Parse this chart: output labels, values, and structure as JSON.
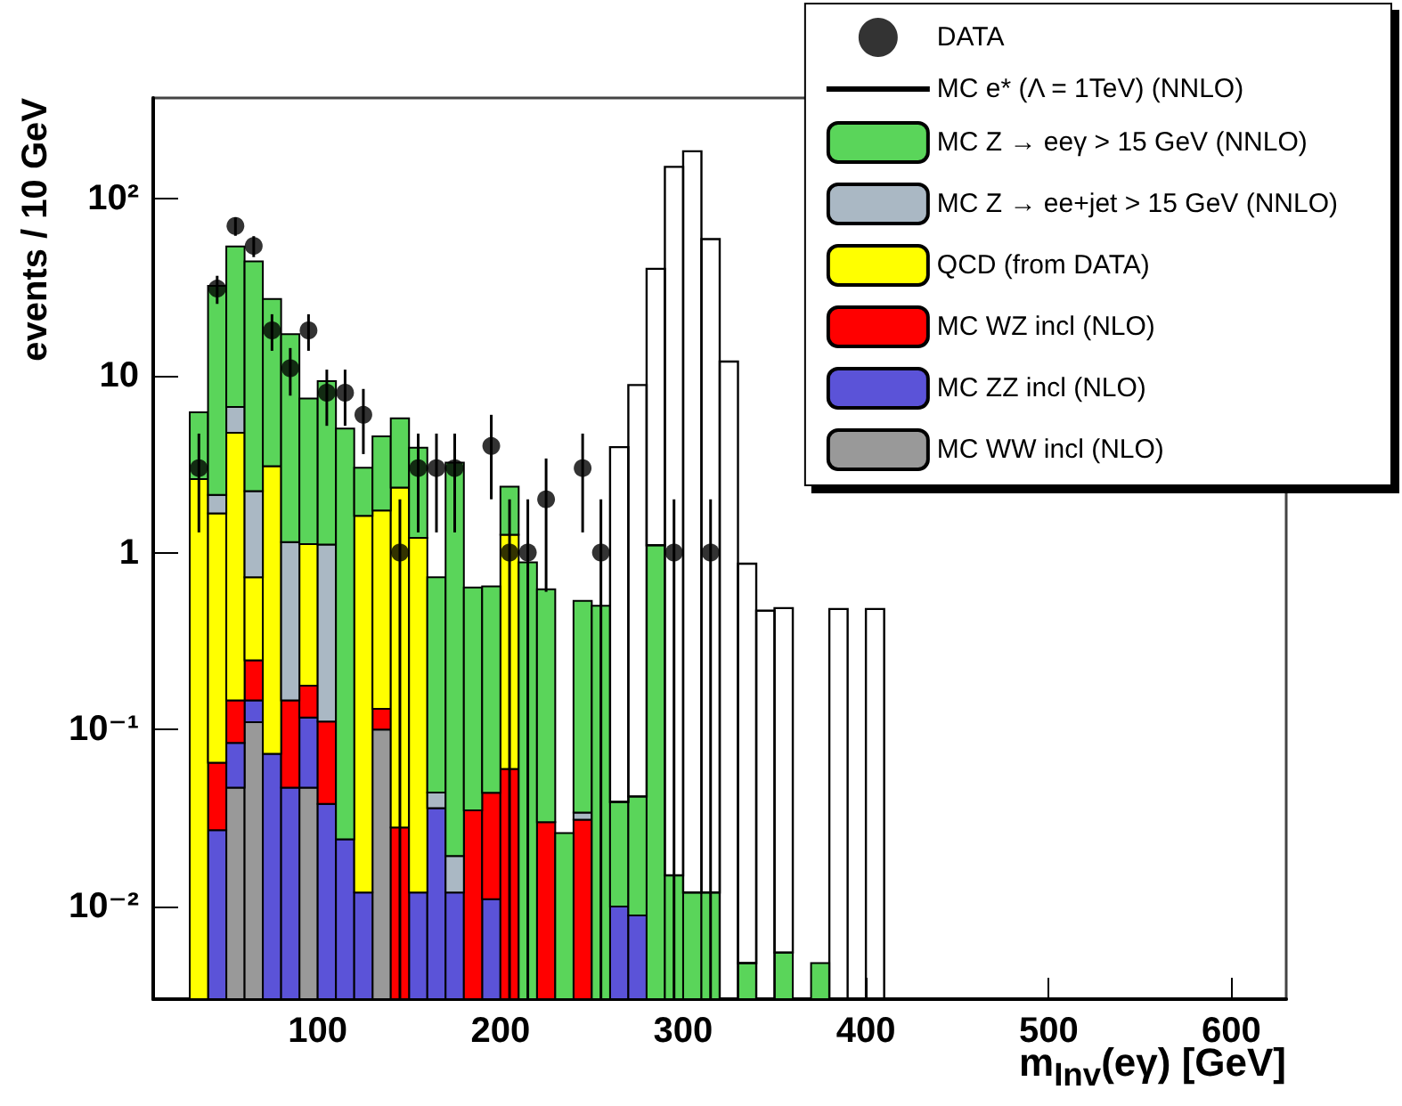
{
  "chart_data": {
    "type": "bar",
    "stacked": true,
    "log": true,
    "legend": "top right",
    "marker": "circle",
    "xlabel": "m$_{Inv}$(eγ) [GeV]",
    "ylabel": "events / 10 GeV",
    "xlim": [
      10,
      630
    ],
    "xticks": [
      100,
      200,
      300,
      400,
      500,
      600
    ],
    "ylim": [
      0.003,
      370
    ],
    "yticks": [
      {
        "value": 0.01,
        "label": "10⁻²"
      },
      {
        "value": 0.1,
        "label": "10⁻¹"
      },
      1,
      10,
      {
        "value": 100,
        "label": "10²"
      }
    ],
    "x": [
      35,
      45,
      55,
      65,
      75,
      85,
      95,
      105,
      115,
      125,
      135,
      145,
      155,
      165,
      175,
      185,
      195,
      205,
      215,
      225,
      235,
      245,
      255,
      265,
      275,
      285,
      295,
      305,
      315,
      325,
      335,
      345,
      355,
      365,
      375,
      385,
      395,
      405
    ],
    "series": [
      {
        "name": "DATA",
        "type": "scatter",
        "color": "#000000",
        "x": [
          35,
          45,
          55,
          65,
          75,
          85,
          95,
          105,
          115,
          125,
          145,
          155,
          165,
          175,
          195,
          205,
          215,
          225,
          245,
          255,
          295,
          315
        ],
        "values": [
          3,
          31,
          70,
          54,
          18,
          11,
          18,
          8,
          8,
          6,
          1,
          3,
          3,
          3,
          4,
          1,
          1,
          2,
          3,
          1,
          1,
          1
        ],
        "errors": [
          1.7,
          5.6,
          8.4,
          7.3,
          4.2,
          3.3,
          4.2,
          2.8,
          2.8,
          2.4,
          [
            0.003,
            2
          ],
          1.7,
          1.7,
          1.7,
          2,
          [
            0.003,
            2
          ],
          [
            0.003,
            2
          ],
          1.4,
          1.7,
          [
            0.003,
            2
          ],
          [
            0.003,
            2
          ],
          [
            0.003,
            2
          ]
        ]
      },
      {
        "name": "MC WW incl (NLO)",
        "color": "#999999",
        "values": [
          null,
          null,
          0.047,
          0.11,
          null,
          null,
          0.047,
          null,
          null,
          null,
          0.1,
          null,
          null,
          null,
          null,
          null,
          null,
          null,
          null,
          null,
          null,
          null,
          null,
          null,
          null,
          null,
          null,
          null,
          null,
          null,
          null,
          null,
          null,
          null,
          null,
          null,
          null,
          null
        ]
      },
      {
        "name": "MC ZZ incl (NLO)",
        "color": "#5b53d8",
        "values": [
          null,
          0.027,
          0.037,
          0.036,
          0.073,
          0.047,
          0.07,
          0.038,
          0.024,
          0.012,
          null,
          null,
          0.012,
          0.036,
          0.012,
          null,
          0.011,
          null,
          null,
          null,
          null,
          null,
          null,
          0.01,
          0.0089,
          null,
          null,
          null,
          null,
          null,
          null,
          null,
          null,
          null,
          null,
          null,
          null,
          null
        ]
      },
      {
        "name": "MC WZ incl (NLO)",
        "color": "#ff0000",
        "values": [
          null,
          0.038,
          0.062,
          0.1,
          null,
          0.099,
          0.06,
          0.073,
          null,
          null,
          0.031,
          0.028,
          null,
          null,
          null,
          0.035,
          0.033,
          0.06,
          null,
          0.03,
          null,
          0.031,
          null,
          null,
          null,
          null,
          null,
          null,
          null,
          null,
          null,
          null,
          null,
          null,
          null,
          null,
          null,
          null
        ]
      },
      {
        "name": "QCD (from DATA)",
        "color": "#ffff00",
        "values": [
          2.6,
          1.6,
          4.6,
          0.48,
          3.0,
          null,
          0.94,
          null,
          null,
          1.6,
          1.6,
          2.3,
          1.2,
          null,
          null,
          null,
          null,
          1.2,
          null,
          null,
          null,
          null,
          null,
          null,
          null,
          null,
          null,
          null,
          null,
          null,
          null,
          null,
          null,
          null,
          null,
          null,
          null,
          null
        ]
      },
      {
        "name": "MC Z → ee+jet > 15 GeV (NNLO)",
        "color": "#aab8c4",
        "values": [
          null,
          0.45,
          1.9,
          1.5,
          null,
          1.0,
          null,
          1.0,
          null,
          null,
          null,
          null,
          null,
          0.0081,
          0.0073,
          null,
          null,
          null,
          null,
          null,
          null,
          0.003,
          null,
          null,
          null,
          null,
          null,
          null,
          null,
          null,
          null,
          null,
          null,
          null,
          null,
          null,
          null,
          null
        ]
      },
      {
        "name": "MC Z → eeγ > 15 GeV (NNLO)",
        "color": "#5ad55a",
        "values": [
          3.6,
          30,
          47,
          42,
          24,
          16,
          6.3,
          8.2,
          5.0,
          1.4,
          2.8,
          3.4,
          2.7,
          0.68,
          3.2,
          0.6,
          0.6,
          1.1,
          0.88,
          0.59,
          0.026,
          0.5,
          0.5,
          0.029,
          0.033,
          1.1,
          0.015,
          0.012,
          0.012,
          null,
          0.0048,
          null,
          0.0055,
          null,
          0.0048,
          null,
          null,
          null
        ]
      },
      {
        "name": "MC e* (Λ = 1TeV) (NNLO)",
        "line_style": "solid",
        "color": "#000000",
        "values": [
          null,
          null,
          null,
          null,
          null,
          null,
          null,
          null,
          null,
          null,
          null,
          null,
          null,
          null,
          null,
          null,
          null,
          null,
          null,
          null,
          null,
          null,
          null,
          3.9,
          8.8,
          39,
          151,
          185,
          59,
          12,
          0.86,
          0.47,
          0.48,
          null,
          null,
          0.48,
          null,
          0.48
        ]
      }
    ]
  }
}
